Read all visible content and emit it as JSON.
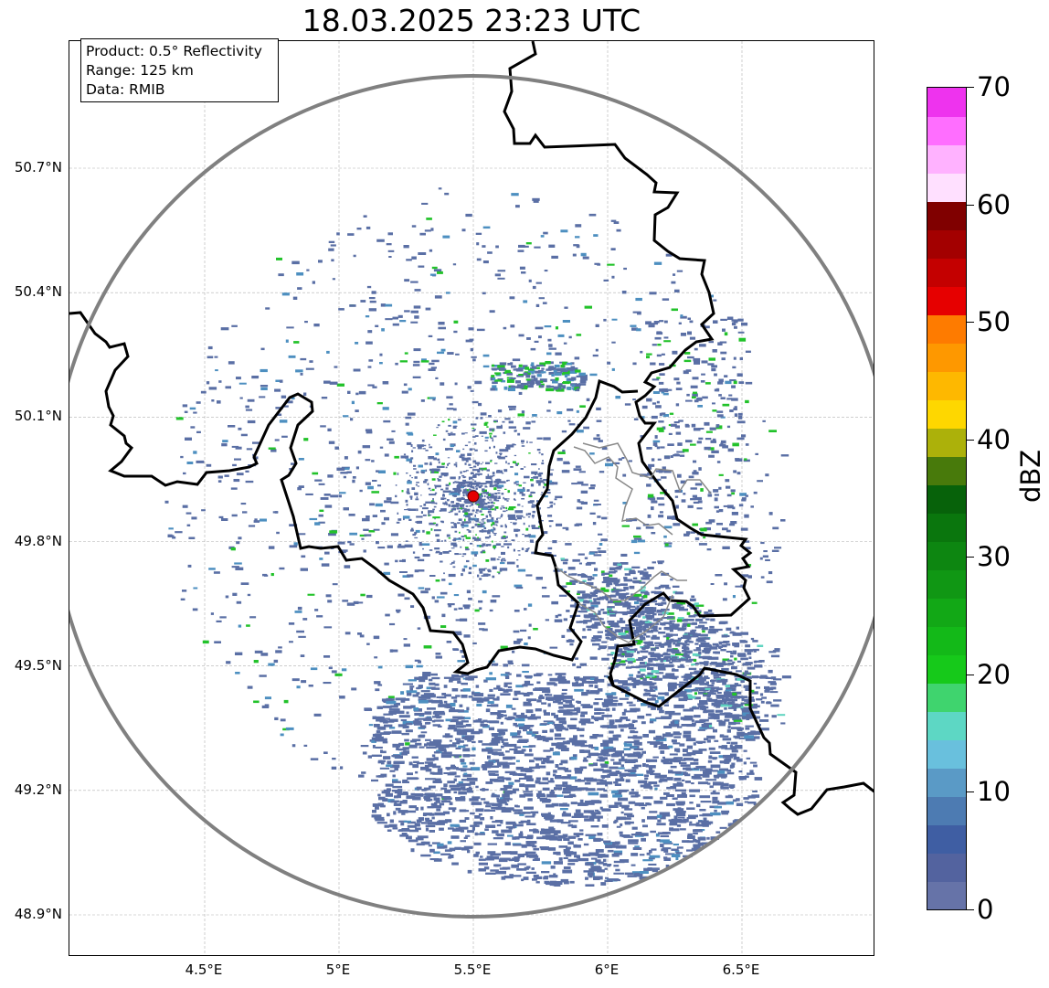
{
  "title": "18.03.2025 23:23 UTC",
  "info_box": {
    "product": "Product: 0.5° Reflectivity",
    "range": "Range: 125 km",
    "data": "Data: RMIB"
  },
  "axes": {
    "lat_labels": [
      "50.7°N",
      "50.4°N",
      "50.1°N",
      "49.8°N",
      "49.5°N",
      "49.2°N",
      "48.9°N"
    ],
    "lat_values": [
      50.7,
      50.4,
      50.1,
      49.8,
      49.5,
      49.2,
      48.9
    ],
    "lon_labels": [
      "4.5°E",
      "5°E",
      "5.5°E",
      "6°E",
      "6.5°E"
    ],
    "lon_values": [
      4.5,
      5.0,
      5.5,
      6.0,
      6.5
    ],
    "lon_range": [
      4.0,
      7.0
    ],
    "lat_range": [
      48.8,
      51.0
    ]
  },
  "radar": {
    "site_lon": 5.505,
    "site_lat": 49.915,
    "range_km": 125,
    "site_color": "#e60000",
    "ring_color": "#808080"
  },
  "colorbar": {
    "unit": "dBZ",
    "min": 0,
    "max": 70,
    "tick_values": [
      0,
      10,
      20,
      30,
      40,
      50,
      60,
      70
    ],
    "tick_labels": [
      "0",
      "10",
      "20",
      "30",
      "40",
      "50",
      "60",
      "70"
    ],
    "colors": [
      "#6673a8",
      "#53639f",
      "#3f5ea3",
      "#4d7bb2",
      "#5a9ac6",
      "#69c0dd",
      "#5dd7c4",
      "#3fd46e",
      "#16c91a",
      "#13b918",
      "#12a816",
      "#109714",
      "#0d8611",
      "#0a760d",
      "#07620a",
      "#487a0b",
      "#acb10a",
      "#fed700",
      "#feb800",
      "#fe9800",
      "#fe7b00",
      "#e60000",
      "#c40000",
      "#a30000",
      "#800000",
      "#ffe0ff",
      "#ffb2ff",
      "#ff6eff",
      "#ee33ee"
    ]
  },
  "colors": {
    "echo_light": "#5a6fa5",
    "echo_medium": "#4d8fc0",
    "echo_cyan": "#5fd4c0",
    "echo_green": "#22c22a",
    "border_national": "#000000",
    "border_regional": "#888888",
    "grid": "#b0b0b0"
  }
}
